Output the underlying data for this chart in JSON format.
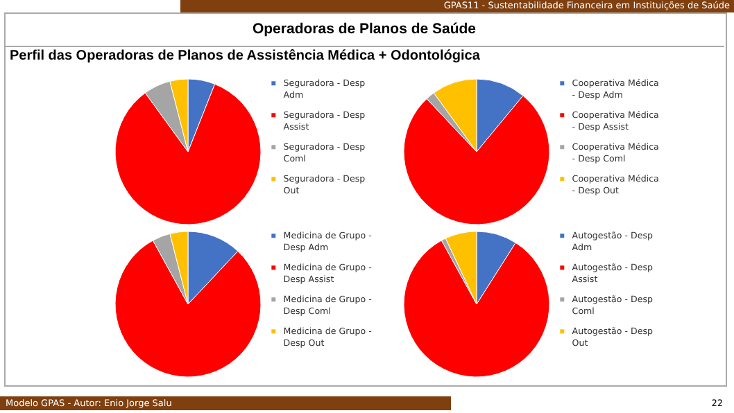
{
  "chart_data": [
    {
      "type": "pie",
      "title": "Operadoras de Planos de Saúde",
      "subtitle": "Perfil das Operadoras de Planos de Assistência Médica + Odontológica",
      "annotations": [
        "GPAS11 - Sustentabilidade Financeira em Instituições de Saúde",
        "Modelo GPAS  -  Autor: Enio Jorge Salu",
        "22"
      ],
      "categories": [
        "Seguradora - Desp Adm",
        "Seguradora - Desp Assist",
        "Seguradora - Desp Coml",
        "Seguradora - Desp Out"
      ],
      "values": [
        6,
        84,
        6,
        4
      ],
      "colors": [
        "#4472c4",
        "#ff0000",
        "#a5a5a5",
        "#ffc000"
      ],
      "legend": "right"
    },
    {
      "type": "pie",
      "categories": [
        "Cooperativa Médica - Desp Adm",
        "Cooperativa Médica - Desp Assist",
        "Cooperativa Médica - Desp Coml",
        "Cooperativa Médica - Desp Out"
      ],
      "values": [
        11,
        77,
        2,
        10
      ],
      "colors": [
        "#4472c4",
        "#ff0000",
        "#a5a5a5",
        "#ffc000"
      ],
      "legend": "right"
    },
    {
      "type": "pie",
      "categories": [
        "Medicina de Grupo - Desp Adm",
        "Medicina de Grupo - Desp Assist",
        "Medicina de Grupo - Desp Coml",
        "Medicina de Grupo - Desp Out"
      ],
      "values": [
        12,
        80,
        4,
        4
      ],
      "colors": [
        "#4472c4",
        "#ff0000",
        "#a5a5a5",
        "#ffc000"
      ],
      "legend": "right"
    },
    {
      "type": "pie",
      "categories": [
        "Autogestão - Desp Adm",
        "Autogestão - Desp Assist",
        "Autogestão - Desp Coml",
        "Autogestão - Desp Out"
      ],
      "values": [
        9,
        83,
        1,
        7
      ],
      "colors": [
        "#4472c4",
        "#ff0000",
        "#a5a5a5",
        "#ffc000"
      ],
      "legend": "right"
    }
  ]
}
